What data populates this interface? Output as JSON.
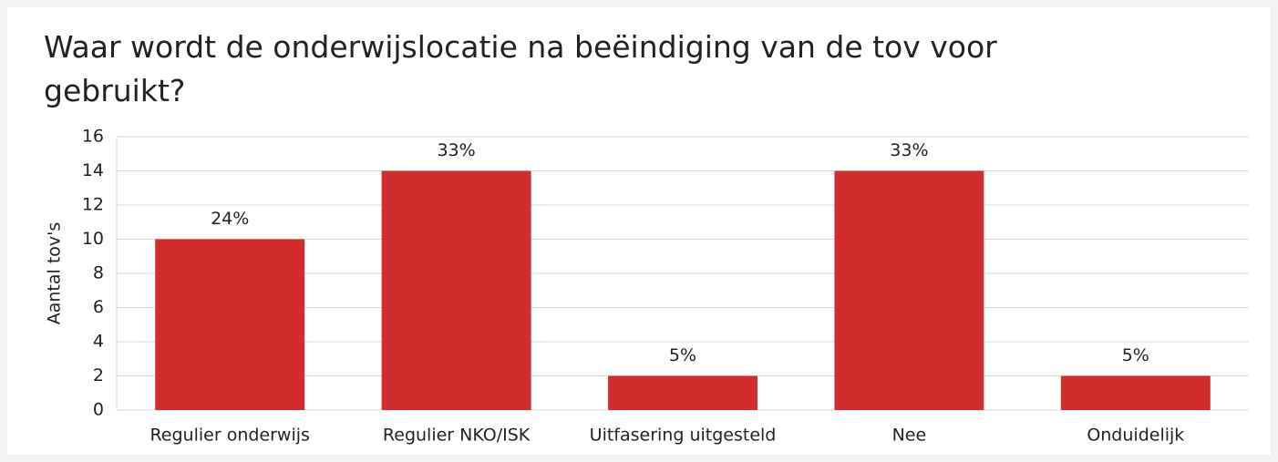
{
  "chart_data": {
    "type": "bar",
    "title": "Waar wordt de onderwijslocatie na beëindiging van de tov voor gebruikt?",
    "y_label": "Aantal tov's",
    "categories": [
      "Regulier onderwijs",
      "Regulier NKO/ISK",
      "Uitfasering uitgesteld",
      "Nee",
      "Onduidelijk"
    ],
    "values": [
      10,
      14,
      2,
      14,
      2
    ],
    "value_labels": [
      "24%",
      "33%",
      "5%",
      "33%",
      "5%"
    ],
    "color": "#d12d2d",
    "ylim": [
      0,
      16
    ],
    "yticks": [
      0,
      2,
      4,
      6,
      8,
      10,
      12,
      14,
      16
    ],
    "grid": true
  }
}
